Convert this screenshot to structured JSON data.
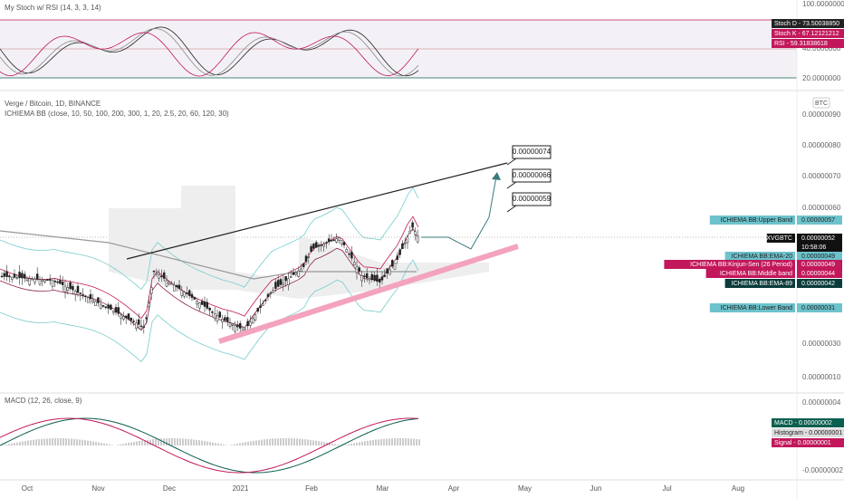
{
  "stoch_pane": {
    "title": "My Stoch w/ RSI (14, 3, 3, 14)",
    "axis_labels": [
      "100.0000000",
      "40.0000000",
      "20.0000000"
    ],
    "legend": [
      {
        "label": "Stoch D - 73.50038850"
      },
      {
        "label": "Stoch K - 67.12121212"
      },
      {
        "label": "RSI - 59.31838618"
      }
    ]
  },
  "main_pane": {
    "title": "Verge / Bitcoin, 1D, BINANCE",
    "indicator": "ICHIEMA BB (close, 10, 50, 100, 200, 300, 1, 20, 2.5, 20, 60, 120, 30)",
    "currency": "BTC",
    "axis_labels": [
      "0.00000090",
      "0.00000080",
      "0.00000070",
      "0.00000060",
      "0.00000030",
      "0.00000010"
    ],
    "callouts": [
      "0.00000074",
      "0.00000066",
      "0.00000059"
    ],
    "price_labels": [
      {
        "name": "ICHIEMA BB:Upper Band",
        "value": "0.00000057"
      },
      {
        "name": "XVGBTC",
        "value": "0.00000052",
        "time": "10:58:06"
      },
      {
        "name": "ICHIEMA BB:EMA-20",
        "value": "0.00000049"
      },
      {
        "name": "ICHIEMA BB:Kinjun-Sen (26 Period)",
        "value": "0.00000049"
      },
      {
        "name": "ICHIEMA BB:Middle band",
        "value": "0.00000044"
      },
      {
        "name": "ICHIEMA BB:EMA-89",
        "value": "0.00000042"
      },
      {
        "name": "ICHIEMA BB:Lower Band",
        "value": "0.00000031"
      }
    ]
  },
  "macd_pane": {
    "title": "MACD (12, 26, close, 9)",
    "axis_labels": [
      "0.00000004",
      "-0.00000002"
    ],
    "legend": [
      {
        "label": "MACD - 0.00000002"
      },
      {
        "label": "Histogram - 0.00000001"
      },
      {
        "label": "Signal - 0.00000001"
      }
    ]
  },
  "time_axis": [
    "Oct",
    "Nov",
    "Dec",
    "2021",
    "Feb",
    "Mar",
    "Apr",
    "May",
    "Jun",
    "Jul",
    "Aug"
  ]
}
